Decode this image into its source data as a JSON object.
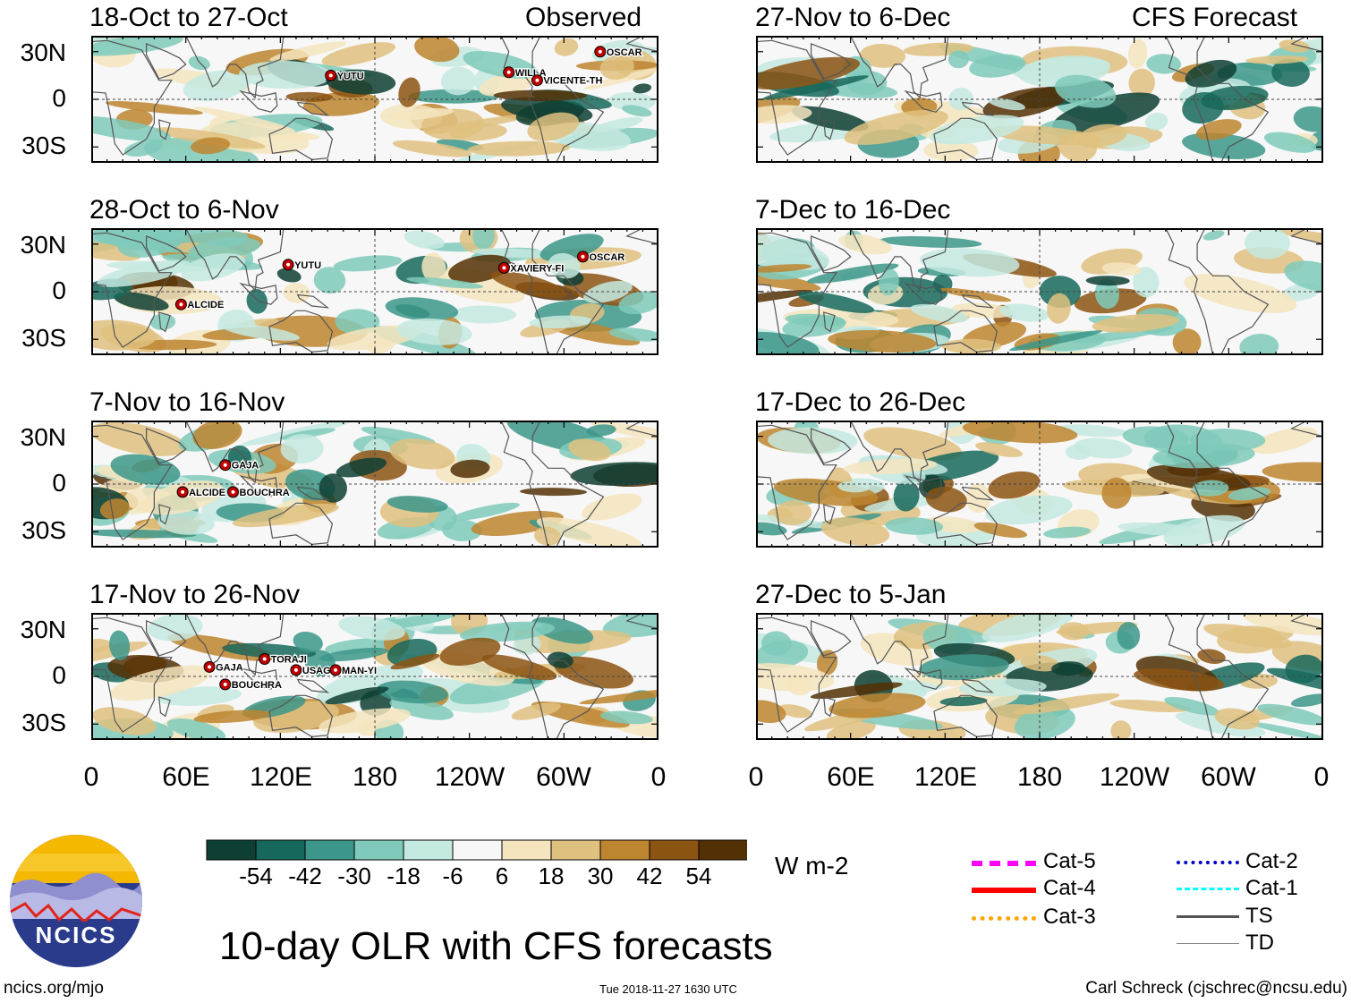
{
  "title": "10-day OLR with CFS forecasts",
  "column_labels": {
    "observed": "Observed",
    "forecast": "CFS Forecast"
  },
  "panels": [
    {
      "period": "18-Oct to 27-Oct",
      "storms": [
        "YUTU",
        "WILLA",
        "VICENTE-TH",
        "OSCAR"
      ]
    },
    {
      "period": "28-Oct to 6-Nov",
      "storms": [
        "YUTU",
        "XAVIERY-FI",
        "OSCAR",
        "ALCIDE"
      ]
    },
    {
      "period": "7-Nov to 16-Nov",
      "storms": [
        "GAJA",
        "BOUCHRA",
        "ALCIDE"
      ]
    },
    {
      "period": "17-Nov to 26-Nov",
      "storms": [
        "GAJA",
        "TORAJI",
        "USAGI",
        "MAN-YI",
        "BOUCHRA"
      ]
    },
    {
      "period": "27-Nov to 6-Dec",
      "storms": []
    },
    {
      "period": "7-Dec to 16-Dec",
      "storms": []
    },
    {
      "period": "17-Dec to 26-Dec",
      "storms": []
    },
    {
      "period": "27-Dec to 5-Jan",
      "storms": []
    }
  ],
  "y_axis": [
    "30N",
    "0",
    "30S"
  ],
  "x_axis": [
    "0",
    "60E",
    "120E",
    "180",
    "120W",
    "60W",
    "0"
  ],
  "colorbar": {
    "units": "W m-2",
    "ticks": [
      "-54",
      "-42",
      "-30",
      "-18",
      "-6",
      "6",
      "18",
      "30",
      "42",
      "54"
    ],
    "colors": [
      "#0e3f34",
      "#17685c",
      "#3c968a",
      "#7fcabb",
      "#c4e9e0",
      "#f7f7f7",
      "#f5e5be",
      "#dfc17f",
      "#bd852f",
      "#8c5413",
      "#543005"
    ]
  },
  "legend": [
    {
      "label": "Cat-5",
      "color": "#ff00ff"
    },
    {
      "label": "Cat-4",
      "color": "#ff0000"
    },
    {
      "label": "Cat-3",
      "color": "#ffa500"
    },
    {
      "label": "Cat-2",
      "color": "#0000cc"
    },
    {
      "label": "Cat-1",
      "color": "#00ffff"
    },
    {
      "label": "TS",
      "color": "#555555"
    },
    {
      "label": "TD",
      "color": "#888888"
    }
  ],
  "logo_text": "NCICS",
  "footer": {
    "url": "ncics.org/mjo",
    "timestamp": "Tue 2018-11-27 1630 UTC",
    "credit": "Carl Schreck (cjschrec@ncsu.edu)"
  }
}
